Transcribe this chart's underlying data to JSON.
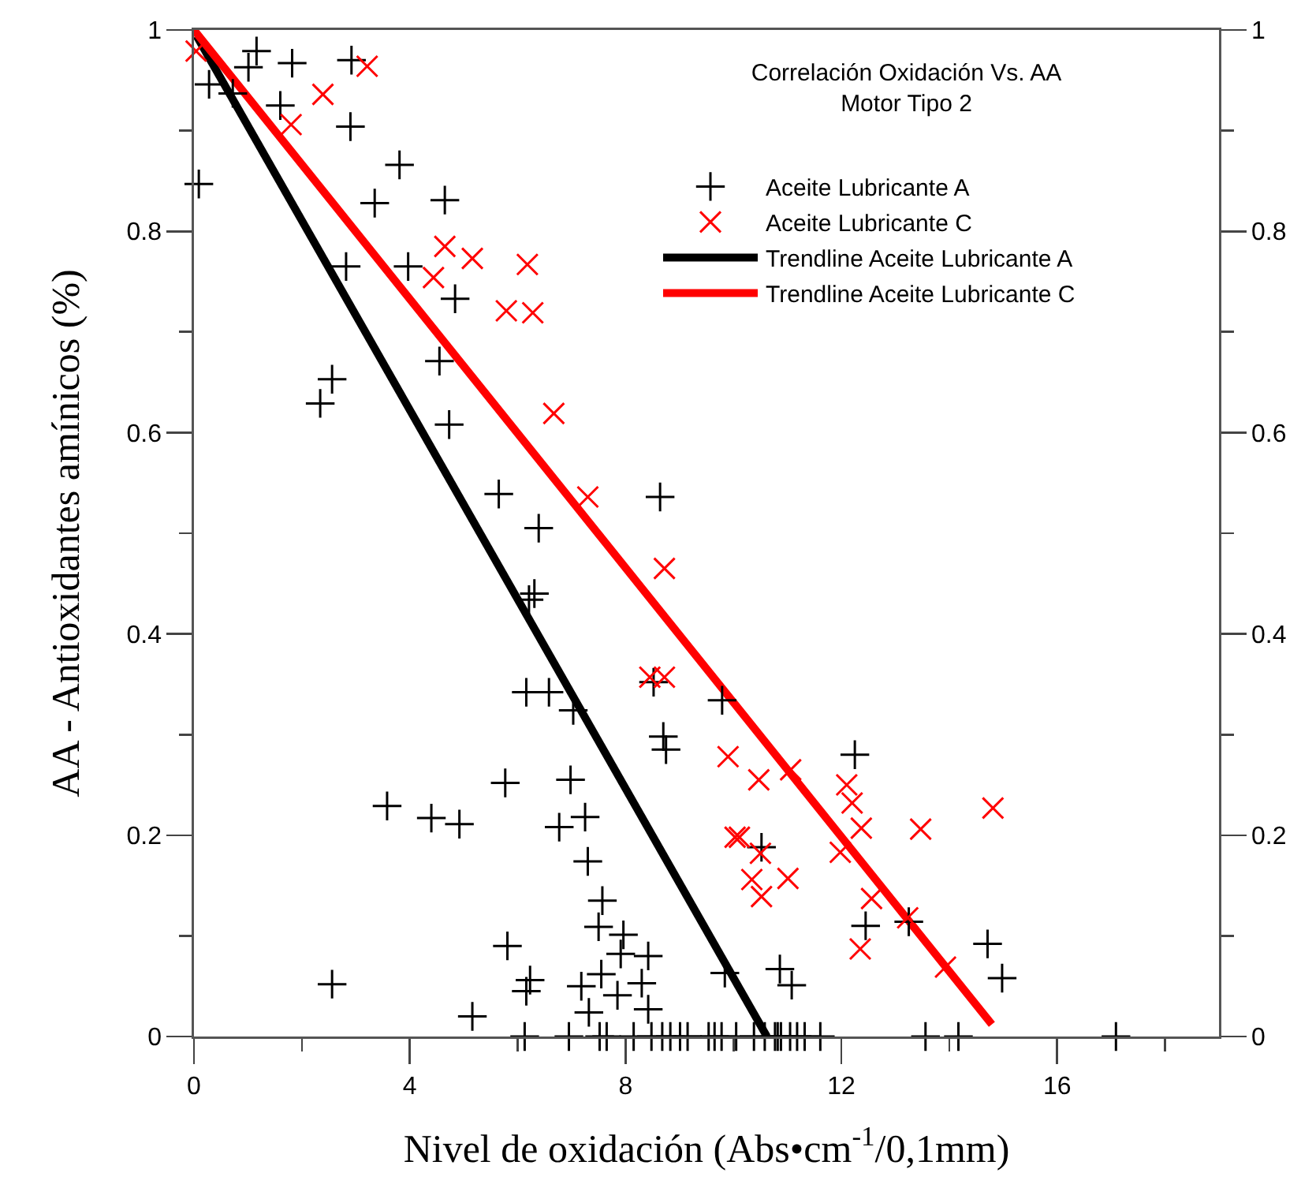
{
  "chart_data": {
    "type": "scatter",
    "title": "Correlación Oxidación Vs. AA\nMotor Tipo 2",
    "xlabel": "Nivel de oxidación (Abs•cm$^{-1}$/0,1mm)",
    "ylabel": "AA - Antioxidantes amínicos (%)",
    "xlim": [
      0,
      19
    ],
    "xticks": [
      0,
      {
        "value": 2,
        "label": null
      },
      4,
      {
        "value": 6,
        "label": null
      },
      8,
      {
        "value": 10,
        "label": null
      },
      12,
      {
        "value": 14,
        "label": null
      },
      16,
      {
        "value": 18,
        "label": null
      }
    ],
    "ylim": [
      0,
      1
    ],
    "yticks": [
      0,
      {
        "value": 0.1,
        "label": null
      },
      0.2,
      {
        "value": 0.3,
        "label": null
      },
      0.4,
      {
        "value": 0.5,
        "label": null
      },
      0.6,
      {
        "value": 0.7,
        "label": null
      },
      0.8,
      {
        "value": 0.9,
        "label": null
      },
      1
    ],
    "y2lim": [
      0,
      1
    ],
    "y2ticks": [
      0,
      {
        "value": 0.1,
        "label": null
      },
      0.2,
      {
        "value": 0.3,
        "label": null
      },
      0.4,
      {
        "value": 0.5,
        "label": null
      },
      0.6,
      {
        "value": 0.7,
        "label": null
      },
      0.8,
      {
        "value": 0.9,
        "label": null
      },
      1
    ],
    "grid": false,
    "legend": "top right",
    "series": [
      {
        "name": "Aceite Lubricante A",
        "marker": "cross",
        "color": "#000000",
        "x": [
          1.16,
          0.28,
          1.01,
          0.72,
          1.82,
          2.92,
          1.6,
          2.9,
          0.09,
          3.81,
          3.35,
          4.65,
          2.82,
          3.97,
          4.84,
          4.55,
          2.56,
          2.34,
          4.73,
          5.65,
          8.64,
          6.39,
          6.31,
          6.21,
          6.16,
          6.58,
          7.03,
          8.52,
          8.7,
          8.75,
          5.77,
          6.98,
          3.58,
          4.4,
          4.92,
          6.77,
          7.25,
          7.3,
          7.57,
          7.5,
          7.96,
          7.91,
          8.42,
          5.81,
          6.23,
          6.16,
          7.18,
          7.55,
          7.85,
          8.3,
          8.42,
          7.32,
          2.56,
          5.16,
          9.79,
          12.25,
          10.52,
          9.84,
          10.86,
          11.08,
          12.45,
          13.25,
          14.71,
          14.98,
          6.13,
          6.95,
          7.52,
          7.65,
          8.15,
          8.48,
          8.68,
          8.83,
          9.01,
          9.15,
          9.54,
          9.65,
          9.78,
          10.05,
          10.38,
          10.58,
          10.77,
          10.82,
          10.88,
          11.05,
          11.18,
          11.32,
          11.61,
          13.56,
          14.17,
          17.09
        ],
        "values": [
          0.979,
          0.946,
          0.963,
          0.937,
          0.967,
          0.97,
          0.925,
          0.904,
          0.847,
          0.866,
          0.828,
          0.831,
          0.765,
          0.765,
          0.733,
          0.671,
          0.653,
          0.629,
          0.608,
          0.539,
          0.536,
          0.505,
          0.44,
          0.434,
          0.342,
          0.342,
          0.324,
          0.352,
          0.298,
          0.285,
          0.252,
          0.255,
          0.229,
          0.217,
          0.211,
          0.208,
          0.218,
          0.174,
          0.135,
          0.109,
          0.101,
          0.082,
          0.08,
          0.09,
          0.056,
          0.045,
          0.05,
          0.062,
          0.041,
          0.053,
          0.027,
          0.024,
          0.052,
          0.02,
          0.334,
          0.28,
          0.188,
          0.063,
          0.067,
          0.051,
          0.11,
          0.114,
          0.092,
          0.058,
          0,
          0,
          0,
          0,
          0,
          0,
          0,
          0,
          0,
          0,
          0,
          0,
          0,
          0,
          0,
          0,
          0,
          0,
          0,
          0,
          0,
          0,
          0,
          0,
          0,
          0
        ]
      },
      {
        "name": "Aceite Lubricante C",
        "marker": "x",
        "color": "#ff0000",
        "x": [
          0.04,
          3.21,
          2.39,
          1.8,
          4.65,
          5.16,
          4.44,
          6.18,
          5.79,
          6.28,
          6.67,
          7.3,
          8.72,
          8.45,
          8.72,
          9.9,
          10.47,
          11.06,
          10.03,
          10.11,
          10.5,
          10.34,
          10.52,
          11.01,
          12.1,
          12.2,
          12.37,
          11.98,
          13.47,
          14.81,
          12.56,
          12.35,
          13.23,
          13.93
        ],
        "values": [
          0.979,
          0.964,
          0.936,
          0.906,
          0.785,
          0.773,
          0.754,
          0.767,
          0.721,
          0.719,
          0.619,
          0.536,
          0.465,
          0.357,
          0.357,
          0.278,
          0.255,
          0.265,
          0.198,
          0.198,
          0.182,
          0.156,
          0.139,
          0.157,
          0.25,
          0.232,
          0.207,
          0.183,
          0.206,
          0.227,
          0.137,
          0.087,
          0.118,
          0.069
        ]
      },
      {
        "name": "Trendline Aceite Lubricante A",
        "type": "line",
        "line_style": "solid",
        "color": "#000000",
        "x": [
          0.05,
          10.62
        ],
        "values": [
          0.994,
          0
        ]
      },
      {
        "name": "Trendline Aceite Lubricante C",
        "type": "line",
        "line_style": "solid",
        "color": "#ff0000",
        "x": [
          0,
          14.79
        ],
        "values": [
          1,
          0.012
        ]
      }
    ]
  }
}
